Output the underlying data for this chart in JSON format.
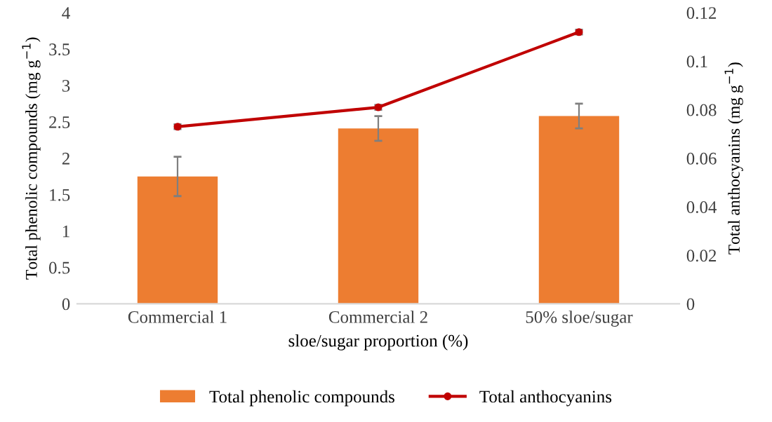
{
  "chart_data": {
    "type": "bar",
    "xlabel": "sloe/sugar proportion (%)",
    "ylabel": "Total phenolic compounds (mg g$^{−1}$)",
    "y2label": "Total anthocyanins (mg g$^{−1}$)",
    "categories": [
      "Commercial 1",
      "Commercial 2",
      "50% sloe/sugar"
    ],
    "series": [
      {
        "name": "Total phenolic compounds",
        "color": "#ed7d31",
        "values": [
          1.75,
          2.41,
          2.58
        ],
        "errors": [
          0.27,
          0.17,
          0.17
        ]
      },
      {
        "name": "Total anthocyanins",
        "type": "line",
        "axis": "y2",
        "color": "#c00000",
        "marker": "circle",
        "values": [
          0.073,
          0.081,
          0.112
        ],
        "errors": [
          0.001,
          0.001,
          0.001
        ]
      }
    ],
    "ylim": [
      0,
      4
    ],
    "yticks": [
      0,
      0.5,
      1,
      1.5,
      2,
      2.5,
      3,
      3.5,
      4
    ],
    "y2lim": [
      0,
      0.12
    ],
    "y2ticks": [
      0,
      0.02,
      0.04,
      0.06,
      0.08,
      0.1,
      0.12
    ],
    "grid": false,
    "legend": "bottom"
  }
}
